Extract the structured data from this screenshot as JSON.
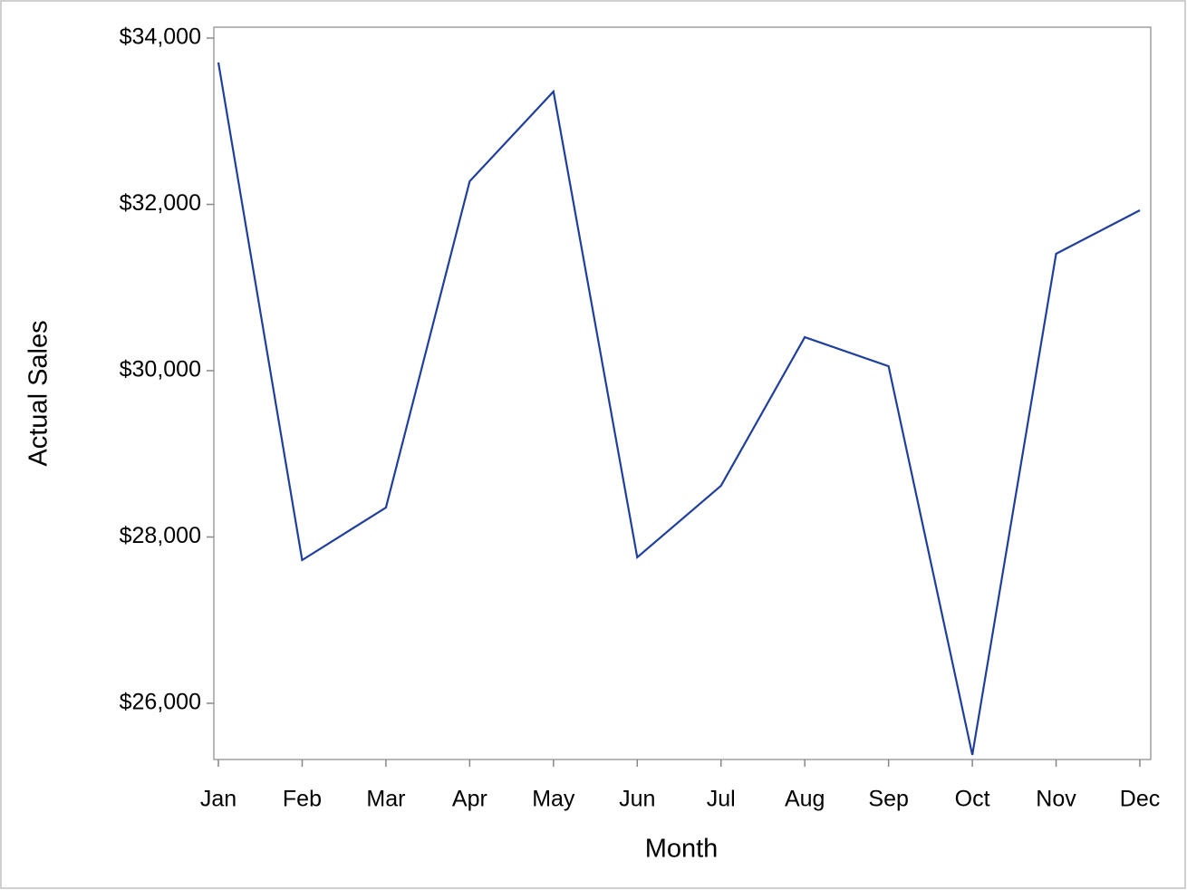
{
  "chart_data": {
    "type": "line",
    "x_label": "Month",
    "y_label": "Actual Sales",
    "categories": [
      "Jan",
      "Feb",
      "Mar",
      "Apr",
      "May",
      "Jun",
      "Jul",
      "Aug",
      "Sep",
      "Oct",
      "Nov",
      "Dec"
    ],
    "series": [
      {
        "name": "Actual Sales",
        "color": "#1f3f9a",
        "values": [
          33706,
          27722,
          28354,
          32278,
          33357,
          27755,
          28616,
          30403,
          30054,
          25379,
          31406,
          31929
        ]
      }
    ],
    "ylim": [
      25324,
      34131
    ],
    "yticks": [
      {
        "value": 26000,
        "label": "$26,000"
      },
      {
        "value": 28000,
        "label": "$28,000"
      },
      {
        "value": 30000,
        "label": "$30,000"
      },
      {
        "value": 32000,
        "label": "$32,000"
      },
      {
        "value": 34000,
        "label": "$34,000"
      }
    ],
    "grid": false
  }
}
